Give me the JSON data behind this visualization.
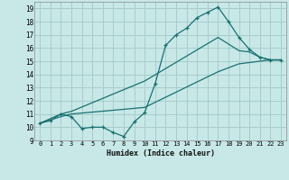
{
  "title": "",
  "xlabel": "Humidex (Indice chaleur)",
  "background_color": "#c8e8e8",
  "grid_color": "#a8cccc",
  "line_color": "#1a7070",
  "xlim": [
    -0.5,
    23.5
  ],
  "ylim": [
    9,
    19.5
  ],
  "yticks": [
    9,
    10,
    11,
    12,
    13,
    14,
    15,
    16,
    17,
    18,
    19
  ],
  "xticks": [
    0,
    1,
    2,
    3,
    4,
    5,
    6,
    7,
    8,
    9,
    10,
    11,
    12,
    13,
    14,
    15,
    16,
    17,
    18,
    19,
    20,
    21,
    22,
    23
  ],
  "line1_x": [
    0,
    1,
    2,
    3,
    4,
    5,
    6,
    7,
    8,
    9,
    10,
    11,
    12,
    13,
    14,
    15,
    16,
    17,
    18,
    19,
    20,
    21,
    22,
    23
  ],
  "line1_y": [
    10.3,
    10.5,
    11.0,
    10.8,
    9.9,
    10.0,
    10.0,
    9.6,
    9.3,
    10.4,
    11.1,
    13.3,
    16.2,
    17.0,
    17.5,
    18.3,
    18.7,
    19.1,
    18.0,
    16.8,
    15.9,
    15.3,
    15.1,
    15.1
  ],
  "line2_x": [
    0,
    2,
    3,
    10,
    17,
    19,
    20,
    21,
    22,
    23
  ],
  "line2_y": [
    10.3,
    11.0,
    11.2,
    13.5,
    16.8,
    15.8,
    15.7,
    15.3,
    15.1,
    15.1
  ],
  "line3_x": [
    0,
    2,
    3,
    10,
    17,
    19,
    20,
    21,
    22,
    23
  ],
  "line3_y": [
    10.3,
    10.8,
    11.0,
    11.5,
    14.2,
    14.8,
    14.9,
    15.0,
    15.1,
    15.1
  ]
}
